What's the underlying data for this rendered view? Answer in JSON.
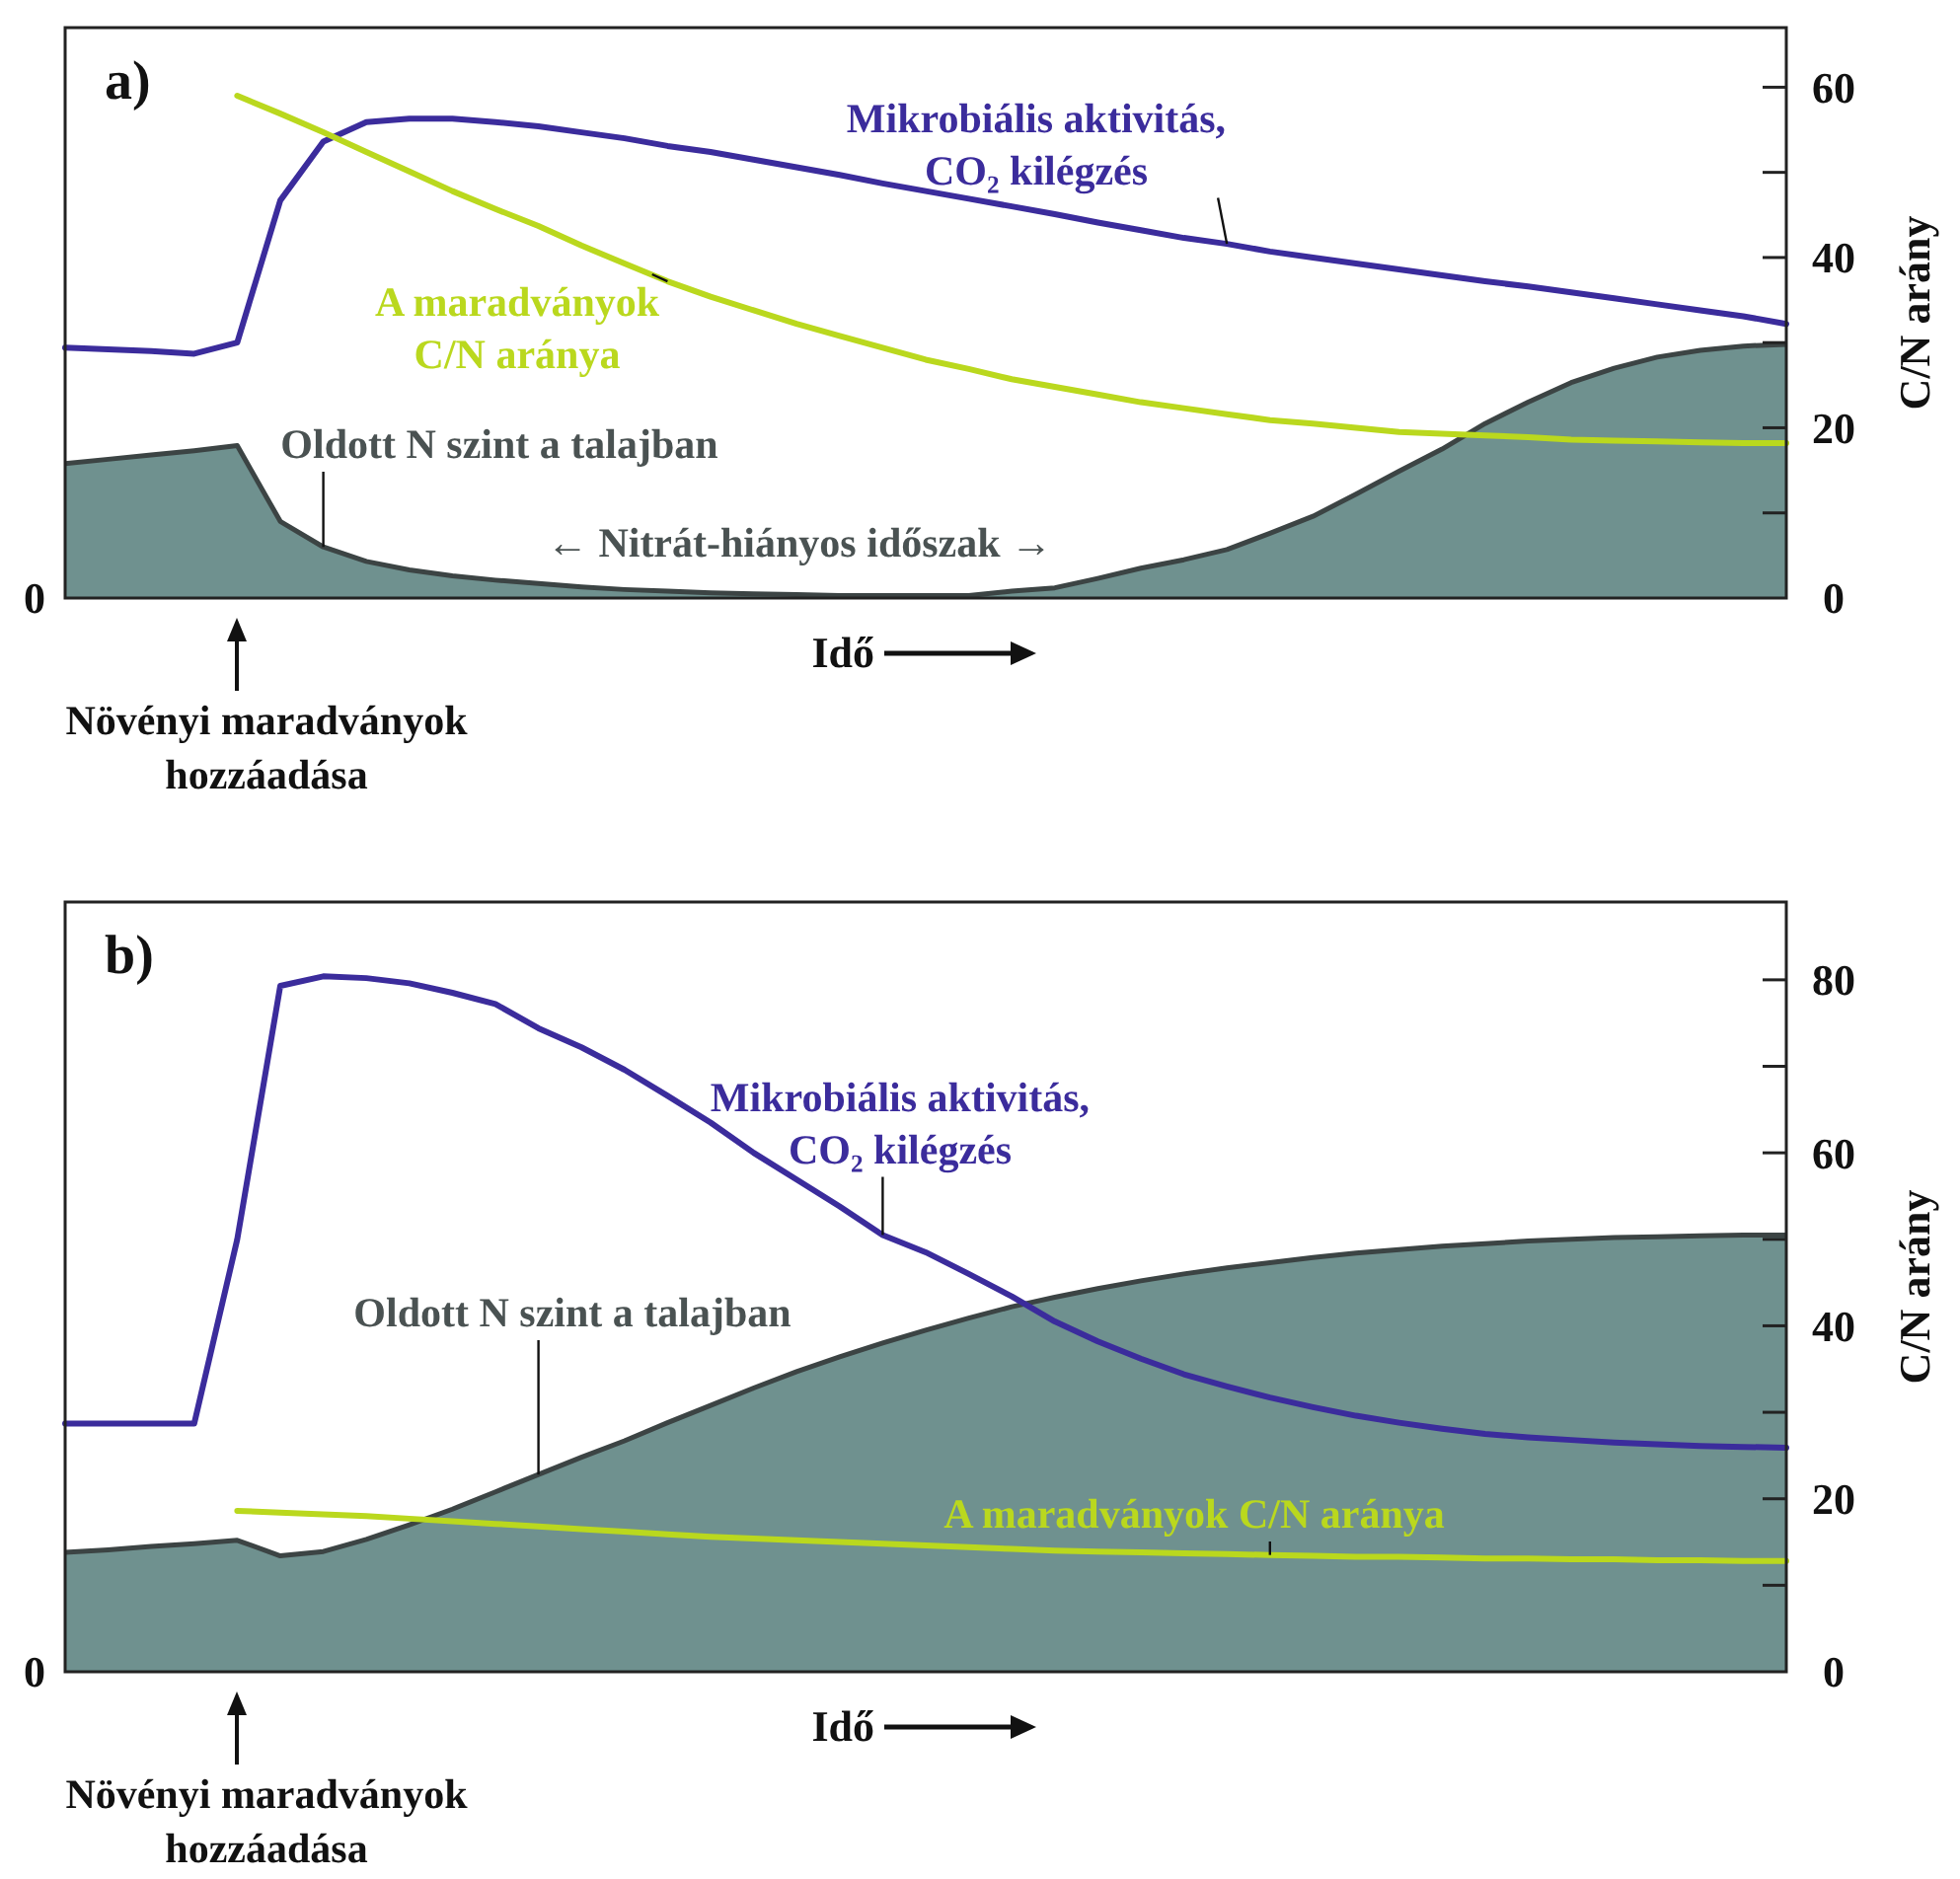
{
  "chart_data": [
    {
      "type": "line",
      "title": "a)",
      "xlabel": "Idő",
      "ylabel": "C/N arány",
      "categories": [
        null,
        null,
        null,
        null,
        null,
        null,
        null,
        null,
        null,
        null,
        null,
        null,
        null,
        null,
        null,
        null,
        null,
        null,
        null,
        null,
        null,
        null,
        null,
        null,
        null,
        null,
        null,
        null,
        null,
        null,
        null,
        null,
        null,
        null,
        null,
        null,
        null,
        null,
        null,
        null,
        null
      ],
      "series": [
        {
          "name": "Oldott N szint a talajban",
          "type": "area",
          "color": "#6f918f",
          "values": [
            15.8,
            16.3,
            16.8,
            17.3,
            17.9,
            9,
            6,
            4.3,
            3.3,
            2.6,
            2.1,
            1.7,
            1.3,
            1,
            0.8,
            0.6,
            0.5,
            0.4,
            0.3,
            0.3,
            0.3,
            0.3,
            0.8,
            1.2,
            2.3,
            3.5,
            4.5,
            5.7,
            7.6,
            9.6,
            12.2,
            14.9,
            17.5,
            20.5,
            23,
            25.3,
            27,
            28.3,
            29.1,
            29.6,
            29.8
          ]
        },
        {
          "name": "Mikrobiális aktivitás, CO₂ kilégzés",
          "color": "#3b2c9c",
          "values": [
            29.4,
            29.2,
            29,
            28.7,
            30,
            46.7,
            53.6,
            55.9,
            56.3,
            56.3,
            55.9,
            55.4,
            54.7,
            54,
            53.1,
            52.4,
            51.5,
            50.6,
            49.7,
            48.7,
            47.8,
            46.9,
            46,
            45.1,
            44.1,
            43.2,
            42.3,
            41.6,
            40.7,
            40,
            39.3,
            38.6,
            37.9,
            37.2,
            36.6,
            35.9,
            35.2,
            34.5,
            33.8,
            33.1,
            32.2
          ]
        },
        {
          "name": "A maradványok C/N aránya",
          "color": "#bad81e",
          "values": [
            null,
            null,
            null,
            null,
            59,
            56.9,
            54.7,
            52.4,
            50.1,
            47.8,
            45.7,
            43.7,
            41.4,
            39.3,
            37.2,
            35.4,
            33.8,
            32.2,
            30.8,
            29.4,
            28,
            26.9,
            25.7,
            24.8,
            23.9,
            23,
            22.3,
            21.6,
            20.9,
            20.5,
            20,
            19.5,
            19.3,
            19.1,
            18.9,
            18.6,
            18.5,
            18.4,
            18.3,
            18.2,
            18.2
          ]
        }
      ],
      "ylim": [
        0,
        67
      ],
      "yticks": [
        0,
        {
          "value": 10,
          "label": null
        },
        20,
        {
          "value": 30,
          "label": null
        },
        40,
        {
          "value": 50,
          "label": null
        },
        60
      ],
      "annotations": [
        "0",
        "Növényi maradványok hozzáadása",
        "← Nitrát-hiányos időszak →"
      ]
    },
    {
      "type": "line",
      "title": "b)",
      "xlabel": "Idő",
      "ylabel": "C/N arány",
      "categories": [
        null,
        null,
        null,
        null,
        null,
        null,
        null,
        null,
        null,
        null,
        null,
        null,
        null,
        null,
        null,
        null,
        null,
        null,
        null,
        null,
        null,
        null,
        null,
        null,
        null,
        null,
        null,
        null,
        null,
        null,
        null,
        null,
        null,
        null,
        null,
        null,
        null,
        null,
        null,
        null,
        null
      ],
      "series": [
        {
          "name": "Oldott N szint a talajban",
          "type": "area",
          "color": "#6f918f",
          "values": [
            13.8,
            14.1,
            14.5,
            14.8,
            15.2,
            13.4,
            13.9,
            15.3,
            17,
            18.8,
            20.8,
            22.8,
            24.8,
            26.7,
            28.8,
            30.8,
            32.8,
            34.7,
            36.4,
            38,
            39.5,
            40.9,
            42.2,
            43.3,
            44.3,
            45.2,
            46,
            46.7,
            47.3,
            47.9,
            48.4,
            48.8,
            49.2,
            49.5,
            49.8,
            50,
            50.2,
            50.3,
            50.4,
            50.5,
            50.5
          ]
        },
        {
          "name": "Mikrobiális aktivitás, CO₂ kilégzés",
          "color": "#3b2c9c",
          "values": [
            28.7,
            28.7,
            28.7,
            28.7,
            50,
            79.3,
            80.4,
            80.2,
            79.6,
            78.5,
            77.2,
            74.4,
            72.2,
            69.6,
            66.6,
            63.5,
            60,
            56.9,
            53.8,
            50.5,
            48.5,
            46,
            43.4,
            40.5,
            38.2,
            36.2,
            34.4,
            33,
            31.7,
            30.6,
            29.6,
            28.8,
            28.1,
            27.5,
            27.1,
            26.8,
            26.5,
            26.3,
            26.1,
            26,
            25.9
          ]
        },
        {
          "name": "A maradványok C/N aránya",
          "color": "#bad81e",
          "values": [
            null,
            null,
            null,
            null,
            18.6,
            18.4,
            18.2,
            18,
            17.7,
            17.4,
            17.1,
            16.8,
            16.5,
            16.2,
            15.9,
            15.6,
            15.4,
            15.2,
            15,
            14.8,
            14.6,
            14.4,
            14.2,
            14,
            13.9,
            13.8,
            13.7,
            13.6,
            13.5,
            13.4,
            13.3,
            13.3,
            13.2,
            13.1,
            13.1,
            13,
            13,
            12.9,
            12.9,
            12.8,
            12.8
          ]
        }
      ],
      "ylim": [
        0,
        89
      ],
      "yticks": [
        0,
        {
          "value": 10,
          "label": null
        },
        20,
        {
          "value": 30,
          "label": null
        },
        40,
        {
          "value": 50,
          "label": null
        },
        60,
        {
          "value": 70,
          "label": null
        },
        80
      ],
      "annotations": [
        "0",
        "Növényi maradványok hozzáadása"
      ]
    }
  ]
}
